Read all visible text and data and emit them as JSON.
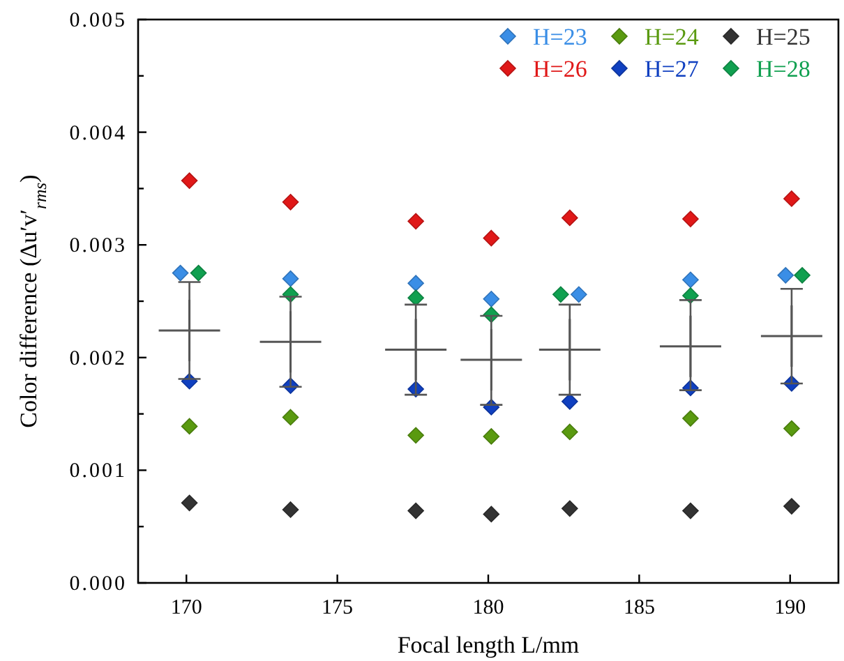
{
  "chart_data": {
    "type": "scatter",
    "xlabel": "Focal length L/mm",
    "ylabel": "Color difference (Δu′v′$_{rms}$)",
    "xlim": [
      168.4,
      191.6
    ],
    "xticks": [
      170,
      175,
      180,
      185,
      190
    ],
    "ylim": [
      0,
      0.005
    ],
    "yticks": [
      {
        "value": 0,
        "label": "0.000"
      },
      {
        "value": 0.0005,
        "label": null
      },
      {
        "value": 0.001,
        "label": "0.001"
      },
      {
        "value": 0.0015,
        "label": null
      },
      {
        "value": 0.002,
        "label": "0.002"
      },
      {
        "value": 0.0025,
        "label": null
      },
      {
        "value": 0.003,
        "label": "0.003"
      },
      {
        "value": 0.0035,
        "label": null
      },
      {
        "value": 0.004,
        "label": "0.004"
      },
      {
        "value": 0.0045,
        "label": null
      },
      {
        "value": 0.005,
        "label": "0.005"
      }
    ],
    "grid": false,
    "legend": "top right",
    "marker": "diamond",
    "series": [
      {
        "name": "H=23",
        "color": "#3a8ee6",
        "x": [
          169.8,
          173.45,
          177.6,
          180.1,
          183,
          186.7,
          189.85
        ],
        "values": [
          0.00275,
          0.0027,
          0.00266,
          0.00252,
          0.00256,
          0.00269,
          0.00273
        ]
      },
      {
        "name": "H=24",
        "color": "#5a9a10",
        "x": [
          170.1,
          173.45,
          177.6,
          180.1,
          182.7,
          186.7,
          190.05
        ],
        "values": [
          0.00139,
          0.00147,
          0.00131,
          0.0013,
          0.00134,
          0.00146,
          0.00137
        ]
      },
      {
        "name": "H=25",
        "color": "#333333",
        "x": [
          170.1,
          173.45,
          177.6,
          180.1,
          182.7,
          186.7,
          190.05
        ],
        "values": [
          0.00071,
          0.00065,
          0.00064,
          0.00061,
          0.00066,
          0.00064,
          0.00068
        ]
      },
      {
        "name": "H=26",
        "color": "#e01818",
        "x": [
          170.1,
          173.45,
          177.6,
          180.1,
          182.7,
          186.7,
          190.05
        ],
        "values": [
          0.00357,
          0.00338,
          0.00321,
          0.00306,
          0.00324,
          0.00323,
          0.00341
        ]
      },
      {
        "name": "H=27",
        "color": "#1040c0",
        "x": [
          170.1,
          173.45,
          177.6,
          180.1,
          182.7,
          186.7,
          190.05
        ],
        "values": [
          0.00179,
          0.00175,
          0.00172,
          0.00156,
          0.00161,
          0.00173,
          0.00177
        ]
      },
      {
        "name": "H=28",
        "color": "#10a050",
        "x": [
          170.4,
          173.45,
          177.6,
          180.1,
          182.4,
          186.7,
          190.4
        ],
        "values": [
          0.00275,
          0.00256,
          0.00253,
          0.00238,
          0.00256,
          0.00255,
          0.00273
        ]
      },
      {
        "color": "#555555",
        "marker": "cross",
        "x": [
          170.1,
          173.45,
          177.6,
          180.1,
          182.7,
          186.7,
          190.05
        ],
        "values": [
          0.00224,
          0.00214,
          0.00207,
          0.00198,
          0.00207,
          0.0021,
          0.00219
        ],
        "errors": [
          [
            0.00181,
            0.00267
          ],
          [
            0.00174,
            0.00254
          ],
          [
            0.00167,
            0.00247
          ],
          [
            0.00158,
            0.00237
          ],
          [
            0.00167,
            0.00247
          ],
          [
            0.00171,
            0.00251
          ],
          [
            0.00177,
            0.00261
          ]
        ]
      }
    ]
  }
}
